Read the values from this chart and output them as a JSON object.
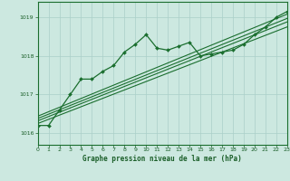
{
  "title": "Graphe pression niveau de la mer (hPa)",
  "bg_color": "#cce8e0",
  "plot_bg_color": "#cce8e0",
  "grid_color": "#aacfc8",
  "line_color": "#1a6e2e",
  "text_color": "#1a5e28",
  "xlim": [
    0,
    23
  ],
  "ylim": [
    1015.7,
    1019.4
  ],
  "yticks": [
    1016,
    1017,
    1018,
    1019
  ],
  "xticks": [
    0,
    1,
    2,
    3,
    4,
    5,
    6,
    7,
    8,
    9,
    10,
    11,
    12,
    13,
    14,
    15,
    16,
    17,
    18,
    19,
    20,
    21,
    22,
    23
  ],
  "main_line": [
    1016.2,
    1016.2,
    1016.6,
    1017.0,
    1017.4,
    1017.4,
    1017.6,
    1017.75,
    1018.1,
    1018.3,
    1018.55,
    1018.2,
    1018.15,
    1018.25,
    1018.35,
    1018.0,
    1018.05,
    1018.1,
    1018.15,
    1018.3,
    1018.55,
    1018.75,
    1019.0,
    1019.15
  ],
  "trends": [
    [
      [
        0,
        1016.25
      ],
      [
        23,
        1018.75
      ]
    ],
    [
      [
        0,
        1016.32
      ],
      [
        23,
        1018.88
      ]
    ],
    [
      [
        0,
        1016.38
      ],
      [
        23,
        1018.97
      ]
    ],
    [
      [
        0,
        1016.44
      ],
      [
        23,
        1019.08
      ]
    ]
  ]
}
